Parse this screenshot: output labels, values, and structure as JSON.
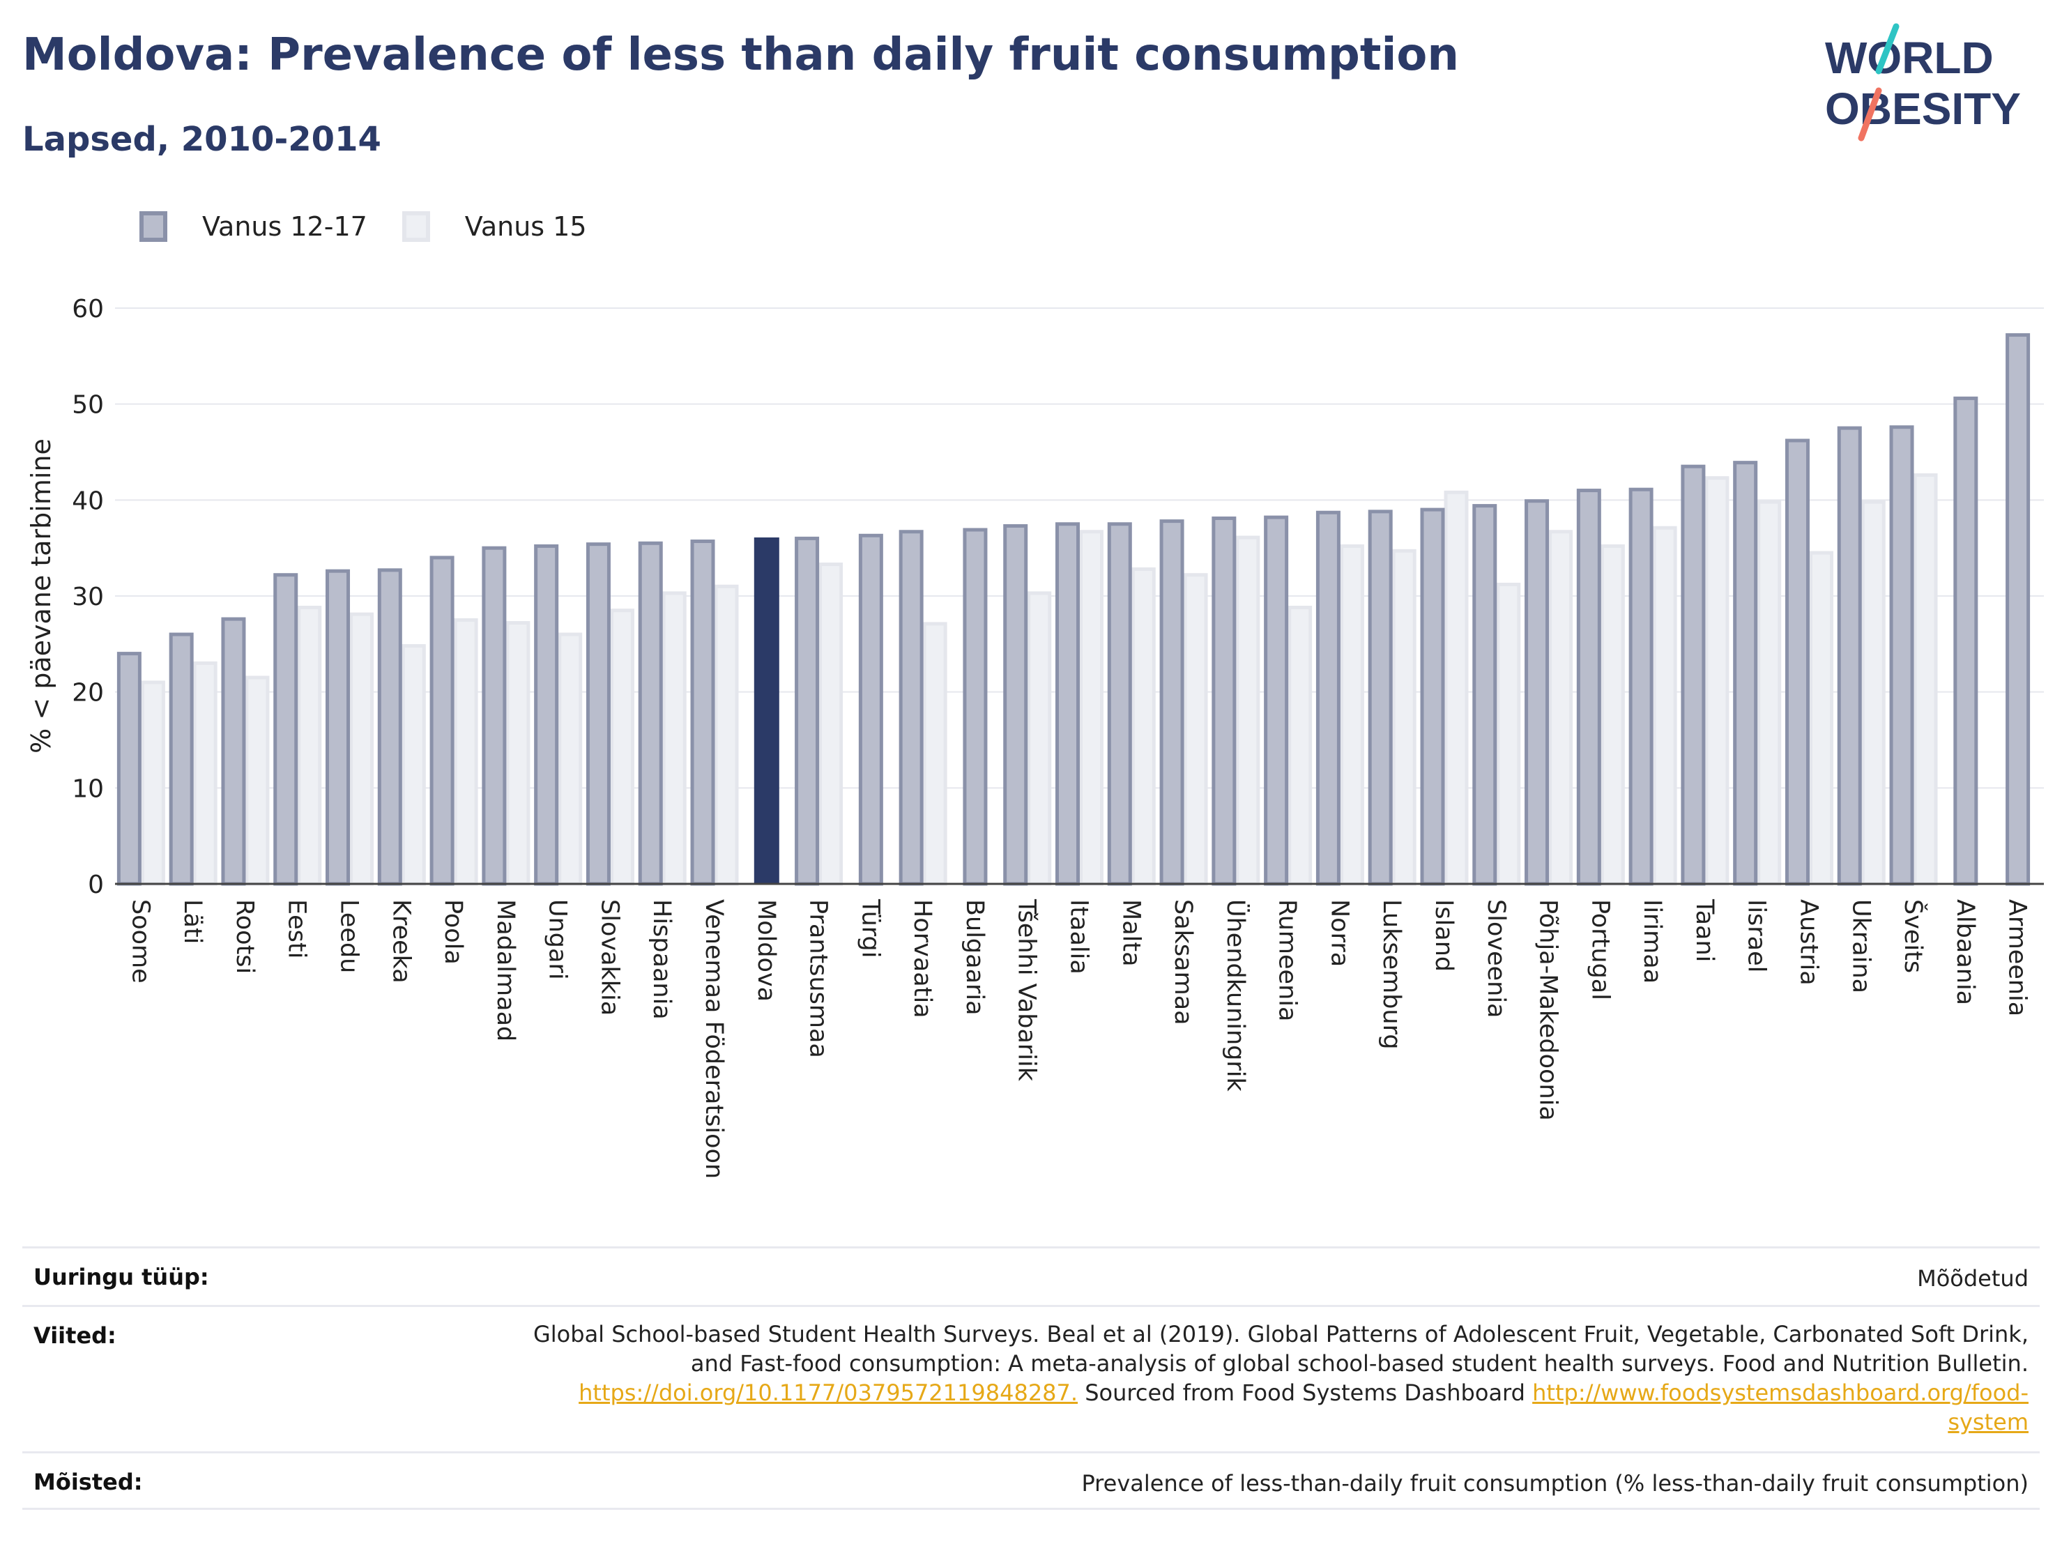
{
  "title": "Moldova: Prevalence of less than daily fruit consumption",
  "subtitle": "Lapsed, 2010-2014",
  "logo": {
    "line1": "WORLD",
    "line2": "OBESITY"
  },
  "colors": {
    "title": "#2b3a67",
    "series1_fill": "#b9bdcc",
    "series1_stroke": "#8a91a9",
    "series2_fill": "#eef0f4",
    "series2_stroke": "#e4e6ec",
    "highlight": "#2b3a67",
    "link": "#e6a817",
    "logo_teal": "#2ec4c4",
    "logo_coral": "#f07361"
  },
  "chart_data": {
    "type": "bar",
    "ylabel": "% < päevane tarbimine",
    "ylim": [
      0,
      60
    ],
    "yticks": [
      0,
      10,
      20,
      30,
      40,
      50,
      60
    ],
    "grid": true,
    "legend_position": "top-left",
    "highlight_category": "Moldova",
    "categories": [
      "Soome",
      "Läti",
      "Rootsi",
      "Eesti",
      "Leedu",
      "Kreeka",
      "Poola",
      "Madalmaad",
      "Ungari",
      "Slovakkia",
      "Hispaania",
      "Venemaa Föderatsioon",
      "Moldova",
      "Prantsusmaa",
      "Türgi",
      "Horvaatia",
      "Bulgaaria",
      "Tšehhi Vabariik",
      "Itaalia",
      "Malta",
      "Saksamaa",
      "Ühendkuningrik",
      "Rumeenia",
      "Norra",
      "Luksemburg",
      "Island",
      "Sloveenia",
      "Põhja-Makedoonia",
      "Portugal",
      "Iirimaa",
      "Taani",
      "Iisrael",
      "Austria",
      "Ukraina",
      "Šveits",
      "Albaania",
      "Armeenia"
    ],
    "series": [
      {
        "name": "Vanus 12-17",
        "values": [
          24,
          26,
          27.6,
          32.2,
          32.6,
          32.7,
          34,
          35,
          35.2,
          35.4,
          35.5,
          35.7,
          36.1,
          36,
          36.3,
          36.7,
          36.9,
          37.3,
          37.5,
          37.5,
          37.8,
          38.1,
          38.2,
          38.7,
          38.8,
          39,
          39.4,
          39.9,
          41,
          41.1,
          43.5,
          43.9,
          46.2,
          47.5,
          47.6,
          50.6,
          57.2
        ]
      },
      {
        "name": "Vanus 15",
        "values": [
          21,
          23,
          21.5,
          28.8,
          28.1,
          24.8,
          27.5,
          27.2,
          26,
          28.5,
          30.3,
          31,
          null,
          33.3,
          null,
          27.1,
          null,
          30.3,
          36.7,
          32.8,
          32.2,
          36.1,
          28.8,
          35.2,
          34.7,
          40.8,
          31.2,
          36.7,
          35.2,
          37.1,
          42.3,
          39.8,
          34.5,
          39.8,
          42.6,
          null,
          null
        ]
      }
    ]
  },
  "footer": {
    "survey_label": "Uuringu tüüp:",
    "survey_value": "Mõõdetud",
    "refs_label": "Viited:",
    "refs_line1": "Global School-based Student Health Surveys. Beal et al (2019). Global Patterns of Adolescent Fruit, Vegetable, Carbonated Soft Drink,",
    "refs_line2": "and Fast-food consumption: A meta-analysis of global school-based student health surveys. Food and Nutrition Bulletin.",
    "refs_link1": "https://doi.org/10.1177/0379572119848287.",
    "refs_mid": " Sourced from Food Systems Dashboard ",
    "refs_link2a": "http://www.foodsystemsdashboard.org/food-",
    "refs_link2b": "system",
    "defs_label": "Mõisted:",
    "defs_value": "Prevalence of less-than-daily fruit consumption (% less-than-daily fruit consumption)"
  }
}
